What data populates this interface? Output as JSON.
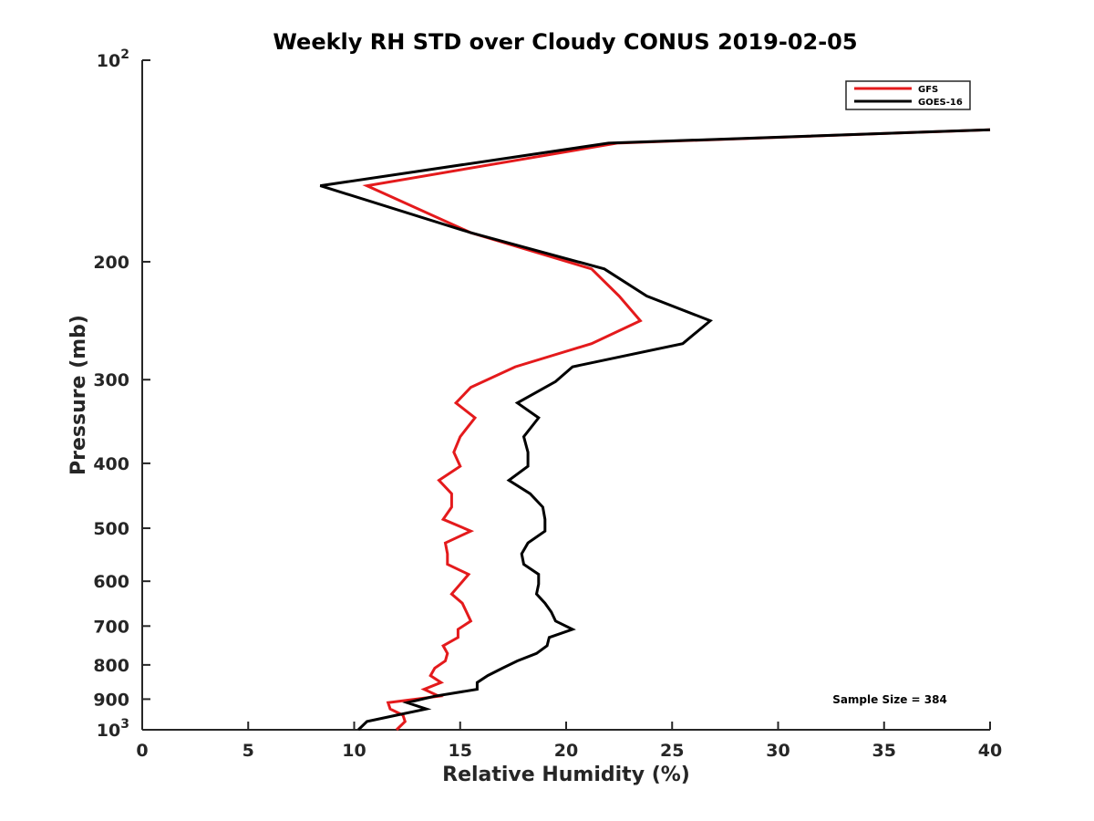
{
  "chart_data": {
    "type": "line",
    "title": "Weekly RH STD over Cloudy CONUS 2019-02-05",
    "xlabel": "Relative Humidity (%)",
    "ylabel": "Pressure (mb)",
    "xlim": [
      0,
      40
    ],
    "ylim": [
      100,
      1000
    ],
    "y_scale": "log",
    "y_reversed": true,
    "x_ticks": [
      0,
      5,
      10,
      15,
      20,
      25,
      30,
      35,
      40
    ],
    "y_ticks": [
      {
        "value": 100,
        "label": "10",
        "sup": "2"
      },
      {
        "value": 200,
        "label": "200"
      },
      {
        "value": 300,
        "label": "300"
      },
      {
        "value": 400,
        "label": "400"
      },
      {
        "value": 500,
        "label": "500"
      },
      {
        "value": 600,
        "label": "600"
      },
      {
        "value": 700,
        "label": "700"
      },
      {
        "value": 800,
        "label": "800"
      },
      {
        "value": 900,
        "label": "900"
      },
      {
        "value": 1000,
        "label": "10",
        "sup": "3"
      }
    ],
    "grid": false,
    "legend_position": "top-right",
    "annotation": "Sample Size = 384",
    "series": [
      {
        "name": "GFS",
        "color": "#e41a1c",
        "points": [
          [
            40.0,
            127
          ],
          [
            22.4,
            133
          ],
          [
            10.6,
            154
          ],
          [
            15.5,
            181
          ],
          [
            21.2,
            205
          ],
          [
            22.5,
            225
          ],
          [
            23.5,
            245
          ],
          [
            21.2,
            265
          ],
          [
            17.6,
            287
          ],
          [
            15.5,
            308
          ],
          [
            14.8,
            325
          ],
          [
            15.7,
            342
          ],
          [
            15.0,
            365
          ],
          [
            14.7,
            385
          ],
          [
            15.0,
            404
          ],
          [
            14.0,
            424
          ],
          [
            14.6,
            444
          ],
          [
            14.6,
            465
          ],
          [
            14.2,
            485
          ],
          [
            15.5,
            505
          ],
          [
            14.3,
            526
          ],
          [
            14.4,
            546
          ],
          [
            14.4,
            566
          ],
          [
            15.4,
            586
          ],
          [
            15.0,
            606
          ],
          [
            14.6,
            627
          ],
          [
            15.1,
            647
          ],
          [
            15.3,
            667
          ],
          [
            15.5,
            688
          ],
          [
            14.9,
            708
          ],
          [
            14.9,
            728
          ],
          [
            14.2,
            749
          ],
          [
            14.4,
            769
          ],
          [
            14.3,
            789
          ],
          [
            13.8,
            809
          ],
          [
            13.6,
            830
          ],
          [
            14.1,
            850
          ],
          [
            13.3,
            870
          ],
          [
            14.0,
            891
          ],
          [
            11.6,
            911
          ],
          [
            11.7,
            931
          ],
          [
            12.3,
            951
          ],
          [
            12.4,
            972
          ],
          [
            12.0,
            1000
          ]
        ]
      },
      {
        "name": "GOES-16",
        "color": "#000000",
        "points": [
          [
            40.0,
            127
          ],
          [
            22.0,
            133
          ],
          [
            8.4,
            154
          ],
          [
            15.5,
            181
          ],
          [
            21.8,
            205
          ],
          [
            23.8,
            225
          ],
          [
            26.8,
            245
          ],
          [
            25.5,
            265
          ],
          [
            20.3,
            287
          ],
          [
            19.5,
            302
          ],
          [
            17.7,
            325
          ],
          [
            18.7,
            342
          ],
          [
            18.0,
            365
          ],
          [
            18.2,
            385
          ],
          [
            18.2,
            404
          ],
          [
            17.3,
            424
          ],
          [
            18.3,
            444
          ],
          [
            18.9,
            465
          ],
          [
            19.0,
            485
          ],
          [
            19.0,
            505
          ],
          [
            18.2,
            526
          ],
          [
            17.9,
            546
          ],
          [
            18.0,
            566
          ],
          [
            18.7,
            586
          ],
          [
            18.7,
            606
          ],
          [
            18.6,
            627
          ],
          [
            19.0,
            647
          ],
          [
            19.3,
            667
          ],
          [
            19.5,
            688
          ],
          [
            20.3,
            708
          ],
          [
            19.2,
            728
          ],
          [
            19.1,
            749
          ],
          [
            18.6,
            769
          ],
          [
            17.7,
            789
          ],
          [
            17.0,
            809
          ],
          [
            16.3,
            830
          ],
          [
            15.8,
            850
          ],
          [
            15.8,
            870
          ],
          [
            13.8,
            891
          ],
          [
            12.5,
            911
          ],
          [
            13.4,
            931
          ],
          [
            12.0,
            951
          ],
          [
            10.6,
            972
          ],
          [
            10.2,
            1000
          ]
        ]
      }
    ]
  }
}
